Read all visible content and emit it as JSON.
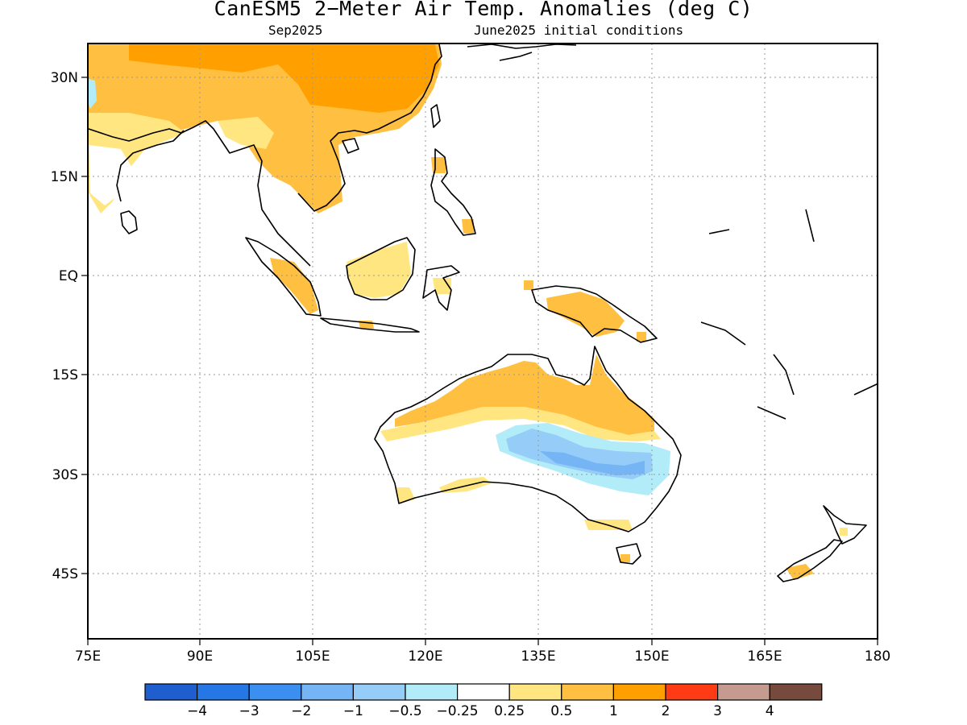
{
  "header": {
    "title": "CanESM5 2−Meter Air Temp. Anomalies (deg C)",
    "valid_month": "Sep2025",
    "init_conditions": "June2025 initial conditions"
  },
  "map": {
    "lon_range": [
      75,
      180
    ],
    "lat_range": [
      -55,
      35
    ],
    "grid": "dotted",
    "lat_ticks": [
      "30N",
      "15N",
      "EQ",
      "15S",
      "30S",
      "45S"
    ],
    "lon_ticks": [
      "75E",
      "90E",
      "105E",
      "120E",
      "135E",
      "150E",
      "165E",
      "180"
    ]
  },
  "legend": {
    "colors": [
      "#1e5ecf",
      "#2577e6",
      "#3b8ff0",
      "#75b5f5",
      "#95ccf8",
      "#b2ecf9",
      "#ffffff",
      "#ffe680",
      "#ffbf40",
      "#ffa000",
      "#ff3b15",
      "#c59b8f",
      "#764a3d"
    ],
    "labels": [
      "−4",
      "−3",
      "−2",
      "−1",
      "−0.5",
      "−0.25",
      "0.25",
      "0.5",
      "1",
      "2",
      "3",
      "4"
    ]
  }
}
